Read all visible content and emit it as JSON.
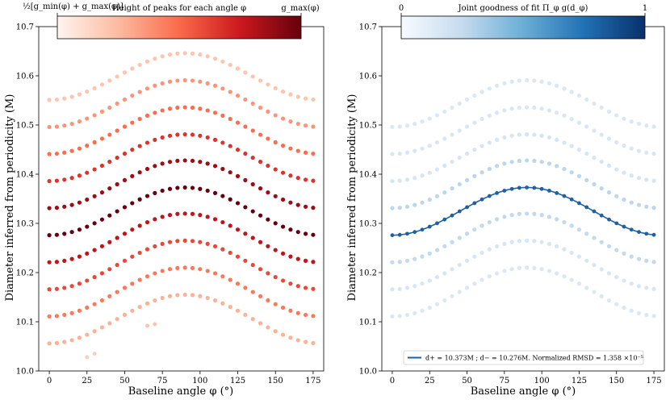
{
  "chart_data": [
    {
      "type": "scatter",
      "xlabel": "Baseline angle φ (°)",
      "ylabel": "Diameter inferred from periodicity (M)",
      "xlim": [
        -7,
        182
      ],
      "ylim": [
        10.0,
        10.7
      ],
      "xticks": [
        0,
        25,
        50,
        75,
        100,
        125,
        150,
        175
      ],
      "yticks": [
        10.0,
        10.1,
        10.2,
        10.3,
        10.4,
        10.5,
        10.6,
        10.7
      ],
      "xtick_labels": [
        "0",
        "25",
        "50",
        "75",
        "100",
        "125",
        "150",
        "175"
      ],
      "ytick_labels": [
        "10.0",
        "10.1",
        "10.2",
        "10.3",
        "10.4",
        "10.5",
        "10.6",
        "10.7"
      ],
      "grid": false,
      "colorbar": {
        "title": "Height of peaks for each angle φ",
        "left_label": "½[g_min(φ) + g_max(φ)]",
        "right_label": "g_max(φ)",
        "colormap": "Reds",
        "colors": [
          "#fff5f0",
          "#fcbba1",
          "#fb6a4a",
          "#cb181d",
          "#67000d"
        ]
      },
      "angles": [
        0,
        5,
        10,
        15,
        20,
        25,
        30,
        35,
        40,
        45,
        50,
        55,
        60,
        65,
        70,
        75,
        80,
        85,
        90,
        95,
        100,
        105,
        110,
        115,
        120,
        125,
        130,
        135,
        140,
        145,
        150,
        155,
        160,
        165,
        170,
        175
      ],
      "series": [
        {
          "d_min": 10.056,
          "d_max": 10.155,
          "intensity": 0.18
        },
        {
          "d_min": 10.111,
          "d_max": 10.21,
          "intensity": 0.38
        },
        {
          "d_min": 10.166,
          "d_max": 10.265,
          "intensity": 0.55
        },
        {
          "d_min": 10.221,
          "d_max": 10.32,
          "intensity": 0.75
        },
        {
          "d_min": 10.276,
          "d_max": 10.373,
          "intensity": 1.0
        },
        {
          "d_min": 10.331,
          "d_max": 10.428,
          "intensity": 0.85
        },
        {
          "d_min": 10.386,
          "d_max": 10.481,
          "intensity": 0.62
        },
        {
          "d_min": 10.441,
          "d_max": 10.536,
          "intensity": 0.42
        },
        {
          "d_min": 10.496,
          "d_max": 10.591,
          "intensity": 0.28
        },
        {
          "d_min": 10.551,
          "d_max": 10.646,
          "intensity": 0.1
        }
      ],
      "stray_points": [
        {
          "x": 25,
          "y": 10.028,
          "intensity": 0.06
        },
        {
          "x": 30,
          "y": 10.035,
          "intensity": 0.06
        },
        {
          "x": 65,
          "y": 10.092,
          "intensity": 0.12
        },
        {
          "x": 70,
          "y": 10.095,
          "intensity": 0.12
        }
      ]
    },
    {
      "type": "scatter",
      "xlabel": "Baseline angle φ (°)",
      "ylabel": "Diameter inferred from periodicity (M)",
      "xlim": [
        -7,
        182
      ],
      "ylim": [
        10.0,
        10.7
      ],
      "xticks": [
        0,
        25,
        50,
        75,
        100,
        125,
        150,
        175
      ],
      "yticks": [
        10.0,
        10.1,
        10.2,
        10.3,
        10.4,
        10.5,
        10.6,
        10.7
      ],
      "xtick_labels": [
        "0",
        "25",
        "50",
        "75",
        "100",
        "125",
        "150",
        "175"
      ],
      "ytick_labels": [
        "10.0",
        "10.1",
        "10.2",
        "10.3",
        "10.4",
        "10.5",
        "10.6",
        "10.7"
      ],
      "grid": false,
      "colorbar": {
        "title": "Joint goodness of fit Π_φ g(d_φ)",
        "left_label": "0",
        "right_label": "1",
        "colormap": "Blues",
        "colors": [
          "#f7fbff",
          "#c6dbef",
          "#6baed6",
          "#2171b5",
          "#08306b"
        ]
      },
      "angles": [
        0,
        5,
        10,
        15,
        20,
        25,
        30,
        35,
        40,
        45,
        50,
        55,
        60,
        65,
        70,
        75,
        80,
        85,
        90,
        95,
        100,
        105,
        110,
        115,
        120,
        125,
        130,
        135,
        140,
        145,
        150,
        155,
        160,
        165,
        170,
        175
      ],
      "series": [
        {
          "d_min": 10.111,
          "d_max": 10.21,
          "intensity": 0.03
        },
        {
          "d_min": 10.166,
          "d_max": 10.265,
          "intensity": 0.05
        },
        {
          "d_min": 10.221,
          "d_max": 10.32,
          "intensity": 0.16
        },
        {
          "d_min": 10.331,
          "d_max": 10.428,
          "intensity": 0.18
        },
        {
          "d_min": 10.386,
          "d_max": 10.481,
          "intensity": 0.06
        },
        {
          "d_min": 10.441,
          "d_max": 10.536,
          "intensity": 0.04
        },
        {
          "d_min": 10.496,
          "d_max": 10.591,
          "intensity": 0.03
        }
      ],
      "fit": {
        "d_plus": 10.373,
        "d_minus": 10.276,
        "color": "#1f5fa3",
        "legend": "d+ = 10.373M ; d− = 10.276M. Normalized RMSD = 1.358 ×10⁻⁵"
      },
      "legend_position": "lower-center"
    }
  ]
}
